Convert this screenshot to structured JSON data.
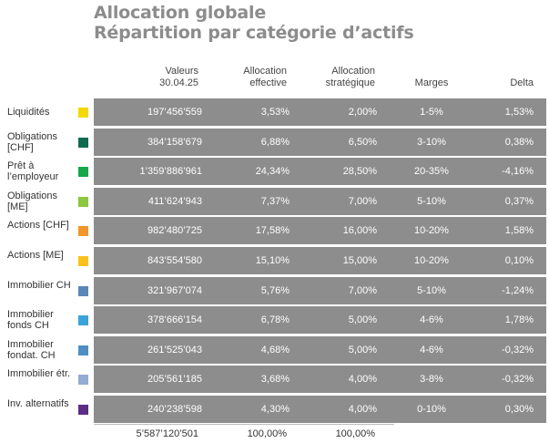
{
  "title": "Allocation globale",
  "subtitle": "Répartition par catégorie d’actifs",
  "headers": {
    "valeurs": "Valeurs\n30.04.25",
    "effective": "Allocation\neffective",
    "strategique": "Allocation\nstratégique",
    "marges": "Marges",
    "delta": "Delta"
  },
  "rows": [
    {
      "label": "Liquidités",
      "color": "#f5d800",
      "valeur": "197’456’559",
      "effective": "3,53%",
      "strategique": "2,00%",
      "marges": "1-5%",
      "delta": "1,53%"
    },
    {
      "label": "Obligations [CHF]",
      "color": "#0f6b4e",
      "valeur": "384’158’679",
      "effective": "6,88%",
      "strategique": "6,50%",
      "marges": "3-10%",
      "delta": "0,38%"
    },
    {
      "label": "Prêt à l’employeur",
      "color": "#17a84a",
      "valeur": "1’359’886’961",
      "effective": "24,34%",
      "strategique": "28,50%",
      "marges": "20-35%",
      "delta": "-4,16%"
    },
    {
      "label": "Obligations [ME]",
      "color": "#8dc63f",
      "valeur": "411’624’943",
      "effective": "7,37%",
      "strategique": "7,00%",
      "marges": "5-10%",
      "delta": "0,37%"
    },
    {
      "label": "Actions [CHF]",
      "color": "#f0962a",
      "valeur": "982’480’725",
      "effective": "17,58%",
      "strategique": "16,00%",
      "marges": "10-20%",
      "delta": "1,58%"
    },
    {
      "label": "Actions [ME]",
      "color": "#fcc21b",
      "valeur": "843’554’580",
      "effective": "15,10%",
      "strategique": "15,00%",
      "marges": "10-20%",
      "delta": "0,10%"
    },
    {
      "label": "Immobilier CH",
      "color": "#5b87b8",
      "valeur": "321’967’074",
      "effective": "5,76%",
      "strategique": "7,00%",
      "marges": "5-10%",
      "delta": "-1,24%"
    },
    {
      "label": "Immobilier fonds CH",
      "color": "#3aa3d9",
      "valeur": "378’666’154",
      "effective": "6,78%",
      "strategique": "5,00%",
      "marges": "4-6%",
      "delta": "1,78%"
    },
    {
      "label": "Immobilier fondat. CH",
      "color": "#4d8fc4",
      "valeur": "261’525’043",
      "effective": "4,68%",
      "strategique": "5,00%",
      "marges": "4-6%",
      "delta": "-0,32%"
    },
    {
      "label": "Immobilier étr.",
      "color": "#95acd3",
      "valeur": "205’561’185",
      "effective": "3,68%",
      "strategique": "4,00%",
      "marges": "3-8%",
      "delta": "-0,32%"
    },
    {
      "label": "Inv. alternatifs",
      "color": "#5b2d86",
      "valeur": "240’238’598",
      "effective": "4,30%",
      "strategique": "4,00%",
      "marges": "0-10%",
      "delta": "0,30%"
    }
  ],
  "totals": {
    "valeur": "5’587’120’501",
    "effective": "100,00%",
    "strategique": "100,00%"
  }
}
